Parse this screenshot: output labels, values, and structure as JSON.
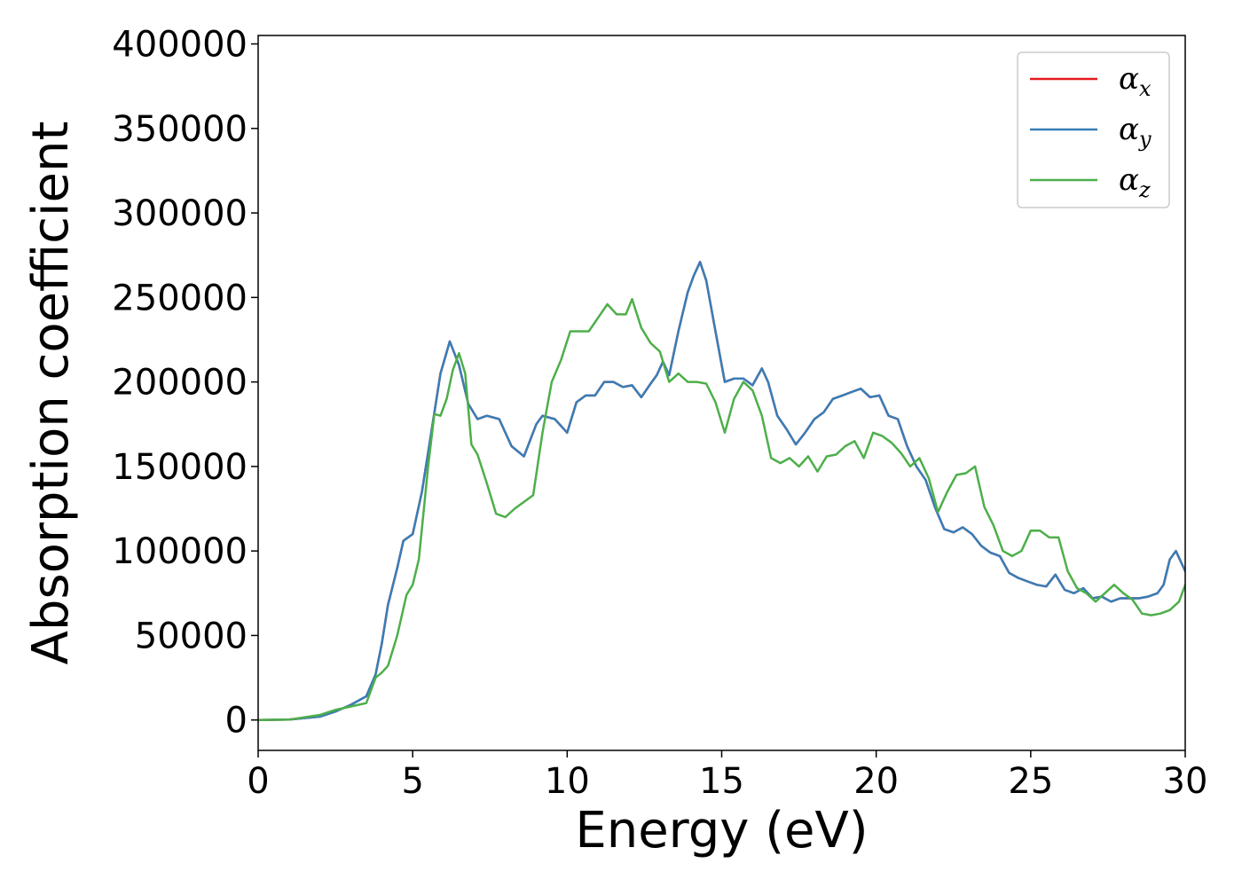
{
  "chart_data": {
    "type": "line",
    "title": "",
    "xlabel": "Energy (eV)",
    "ylabel": "Absorption coefficient",
    "xlim": [
      0,
      30
    ],
    "ylim": [
      -18000,
      405000
    ],
    "xticks": [
      0,
      5,
      10,
      15,
      20,
      25,
      30
    ],
    "yticks": [
      0,
      50000,
      100000,
      150000,
      200000,
      250000,
      300000,
      350000,
      400000
    ],
    "grid": false,
    "legend_position": "top-right",
    "series": [
      {
        "name": "α",
        "subscript": "x",
        "color": "#e41a1c",
        "x": [
          0,
          1,
          2,
          2.5,
          3,
          3.5,
          3.8,
          4,
          4.2,
          4.5,
          4.7,
          5,
          5.3,
          5.6,
          5.9,
          6.2,
          6.5,
          6.8,
          7.1,
          7.4,
          7.8,
          8.2,
          8.6,
          9,
          9.2,
          9.6,
          10,
          10.3,
          10.6,
          10.9,
          11.2,
          11.5,
          11.8,
          12.1,
          12.4,
          12.7,
          12.9,
          13.1,
          13.3,
          13.6,
          13.9,
          14.1,
          14.3,
          14.5,
          14.8,
          15.1,
          15.4,
          15.7,
          16,
          16.3,
          16.5,
          16.8,
          17.1,
          17.4,
          17.7,
          18,
          18.3,
          18.6,
          18.9,
          19.2,
          19.5,
          19.8,
          20.1,
          20.4,
          20.7,
          21,
          21.3,
          21.6,
          21.9,
          22.2,
          22.5,
          22.8,
          23.1,
          23.4,
          23.7,
          24,
          24.3,
          24.6,
          24.9,
          25.2,
          25.5,
          25.8,
          26.1,
          26.4,
          26.7,
          27,
          27.3,
          27.6,
          27.9,
          28.2,
          28.5,
          28.8,
          29.1,
          29.3,
          29.5,
          29.7,
          30
        ],
        "values": [
          0,
          200,
          2000,
          5000,
          9000,
          14000,
          27000,
          45000,
          68000,
          90000,
          106000,
          110000,
          135000,
          170000,
          205000,
          224000,
          210000,
          187000,
          178000,
          180000,
          178000,
          162000,
          156000,
          175000,
          180000,
          178000,
          170000,
          188000,
          192000,
          192000,
          200000,
          200000,
          197000,
          198000,
          191000,
          199000,
          204000,
          212000,
          204000,
          230000,
          253000,
          263000,
          271000,
          260000,
          230000,
          200000,
          202000,
          202000,
          198000,
          208000,
          200000,
          180000,
          172000,
          163000,
          170000,
          178000,
          182000,
          190000,
          192000,
          194000,
          196000,
          191000,
          192000,
          180000,
          178000,
          162000,
          150000,
          142000,
          126000,
          113000,
          111000,
          114000,
          110000,
          103000,
          99000,
          97000,
          87000,
          84000,
          82000,
          80000,
          79000,
          86000,
          77000,
          75000,
          78000,
          72000,
          73000,
          70000,
          72000,
          72000,
          72000,
          73000,
          75000,
          80000,
          95000,
          100000,
          88000
        ]
      },
      {
        "name": "α",
        "subscript": "y",
        "color": "#377eb8",
        "x": [
          0,
          1,
          2,
          2.5,
          3,
          3.5,
          3.8,
          4,
          4.2,
          4.5,
          4.7,
          5,
          5.3,
          5.6,
          5.9,
          6.2,
          6.5,
          6.8,
          7.1,
          7.4,
          7.8,
          8.2,
          8.6,
          9,
          9.2,
          9.6,
          10,
          10.3,
          10.6,
          10.9,
          11.2,
          11.5,
          11.8,
          12.1,
          12.4,
          12.7,
          12.9,
          13.1,
          13.3,
          13.6,
          13.9,
          14.1,
          14.3,
          14.5,
          14.8,
          15.1,
          15.4,
          15.7,
          16,
          16.3,
          16.5,
          16.8,
          17.1,
          17.4,
          17.7,
          18,
          18.3,
          18.6,
          18.9,
          19.2,
          19.5,
          19.8,
          20.1,
          20.4,
          20.7,
          21,
          21.3,
          21.6,
          21.9,
          22.2,
          22.5,
          22.8,
          23.1,
          23.4,
          23.7,
          24,
          24.3,
          24.6,
          24.9,
          25.2,
          25.5,
          25.8,
          26.1,
          26.4,
          26.7,
          27,
          27.3,
          27.6,
          27.9,
          28.2,
          28.5,
          28.8,
          29.1,
          29.3,
          29.5,
          29.7,
          30
        ],
        "values": [
          0,
          200,
          2000,
          5000,
          9000,
          14000,
          27000,
          45000,
          68000,
          90000,
          106000,
          110000,
          135000,
          170000,
          205000,
          224000,
          210000,
          187000,
          178000,
          180000,
          178000,
          162000,
          156000,
          175000,
          180000,
          178000,
          170000,
          188000,
          192000,
          192000,
          200000,
          200000,
          197000,
          198000,
          191000,
          199000,
          204000,
          212000,
          204000,
          230000,
          253000,
          263000,
          271000,
          260000,
          230000,
          200000,
          202000,
          202000,
          198000,
          208000,
          200000,
          180000,
          172000,
          163000,
          170000,
          178000,
          182000,
          190000,
          192000,
          194000,
          196000,
          191000,
          192000,
          180000,
          178000,
          162000,
          150000,
          142000,
          126000,
          113000,
          111000,
          114000,
          110000,
          103000,
          99000,
          97000,
          87000,
          84000,
          82000,
          80000,
          79000,
          86000,
          77000,
          75000,
          78000,
          72000,
          73000,
          70000,
          72000,
          72000,
          72000,
          73000,
          75000,
          80000,
          95000,
          100000,
          88000
        ]
      },
      {
        "name": "α",
        "subscript": "z",
        "color": "#4daf4a",
        "x": [
          0,
          1,
          2,
          2.5,
          3,
          3.5,
          3.8,
          4,
          4.2,
          4.5,
          4.8,
          5,
          5.2,
          5.5,
          5.7,
          5.9,
          6.1,
          6.3,
          6.5,
          6.7,
          6.9,
          7.1,
          7.4,
          7.7,
          8,
          8.3,
          8.6,
          8.9,
          9.2,
          9.5,
          9.8,
          10.1,
          10.4,
          10.7,
          11,
          11.3,
          11.6,
          11.9,
          12.1,
          12.4,
          12.7,
          13,
          13.3,
          13.6,
          13.9,
          14.2,
          14.5,
          14.8,
          15.1,
          15.4,
          15.7,
          16,
          16.3,
          16.6,
          16.9,
          17.2,
          17.5,
          17.8,
          18.1,
          18.4,
          18.7,
          19,
          19.3,
          19.6,
          19.9,
          20.2,
          20.5,
          20.8,
          21.1,
          21.4,
          21.7,
          22,
          22.3,
          22.6,
          22.9,
          23.2,
          23.5,
          23.8,
          24.1,
          24.4,
          24.7,
          25,
          25.3,
          25.6,
          25.9,
          26.2,
          26.5,
          26.8,
          27.1,
          27.4,
          27.7,
          28,
          28.3,
          28.6,
          28.9,
          29.2,
          29.5,
          29.8,
          30
        ],
        "values": [
          0,
          200,
          3000,
          6000,
          8000,
          10000,
          25000,
          28000,
          32000,
          50000,
          74000,
          80000,
          95000,
          150000,
          181000,
          180000,
          190000,
          207000,
          217000,
          205000,
          163000,
          157000,
          140000,
          122000,
          120000,
          125000,
          129000,
          133000,
          170000,
          200000,
          213000,
          230000,
          230000,
          230000,
          238000,
          246000,
          240000,
          240000,
          249000,
          232000,
          223000,
          218000,
          200000,
          205000,
          200000,
          200000,
          199000,
          188000,
          170000,
          190000,
          200000,
          195000,
          180000,
          155000,
          152000,
          155000,
          150000,
          156000,
          147000,
          156000,
          157000,
          162000,
          165000,
          155000,
          170000,
          168000,
          164000,
          158000,
          150000,
          155000,
          143000,
          123000,
          135000,
          145000,
          146000,
          150000,
          126000,
          115000,
          100000,
          97000,
          100000,
          112000,
          112000,
          108000,
          108000,
          88000,
          78000,
          75000,
          70000,
          75000,
          80000,
          75000,
          71000,
          63000,
          62000,
          63000,
          65000,
          70000,
          80000
        ]
      }
    ]
  }
}
